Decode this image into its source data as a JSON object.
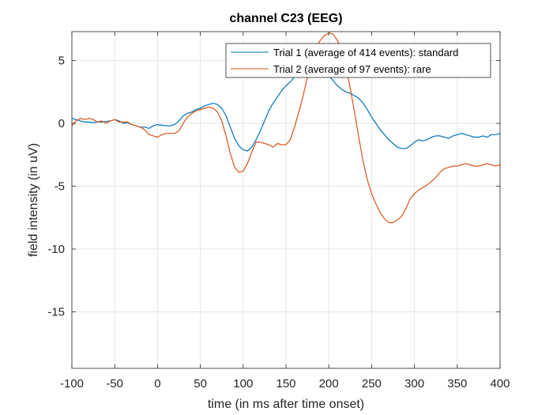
{
  "chart_data": {
    "type": "line",
    "title": "channel C23 (EEG)",
    "xlabel": "time (in ms after time onset)",
    "ylabel": "field intensity (in uV)",
    "xlim": [
      -100,
      400
    ],
    "ylim": [
      -19.5,
      7.3
    ],
    "xticks": [
      -100,
      -50,
      0,
      50,
      100,
      150,
      200,
      250,
      300,
      350,
      400
    ],
    "yticks": [
      5,
      0,
      -5,
      -10,
      -15
    ],
    "grid": true,
    "legend_position": "top-right",
    "series": [
      {
        "name": "Trial 1 (average of 414 events): standard",
        "color": "#0072BD",
        "x": [
          -100,
          -95,
          -90,
          -85,
          -80,
          -75,
          -70,
          -65,
          -60,
          -55,
          -50,
          -45,
          -40,
          -35,
          -30,
          -25,
          -20,
          -15,
          -10,
          -5,
          0,
          5,
          10,
          15,
          20,
          25,
          30,
          35,
          40,
          45,
          50,
          55,
          60,
          65,
          70,
          75,
          80,
          85,
          90,
          95,
          100,
          105,
          110,
          115,
          120,
          125,
          130,
          135,
          140,
          145,
          150,
          155,
          160,
          165,
          170,
          175,
          180,
          185,
          190,
          195,
          200,
          205,
          210,
          215,
          220,
          225,
          230,
          235,
          240,
          245,
          250,
          255,
          260,
          265,
          270,
          275,
          280,
          285,
          290,
          295,
          300,
          305,
          310,
          315,
          320,
          325,
          330,
          335,
          340,
          345,
          350,
          355,
          360,
          365,
          370,
          375,
          380,
          385,
          390,
          395,
          400
        ],
        "values": [
          0.4,
          0.3,
          0.2,
          0.1,
          0.1,
          0.05,
          0.1,
          0.1,
          0.15,
          0.2,
          0.3,
          0.2,
          0.0,
          0.05,
          -0.1,
          -0.2,
          -0.3,
          -0.3,
          -0.4,
          -0.2,
          -0.1,
          -0.15,
          -0.2,
          -0.2,
          -0.1,
          0.2,
          0.6,
          0.8,
          0.9,
          1.1,
          1.2,
          1.4,
          1.5,
          1.6,
          1.5,
          1.2,
          0.6,
          -0.3,
          -1.2,
          -1.8,
          -2.1,
          -2.2,
          -1.9,
          -1.3,
          -0.6,
          0.2,
          1.0,
          1.6,
          2.1,
          2.6,
          3.0,
          3.3,
          3.7,
          4.0,
          4.2,
          4.5,
          4.6,
          4.6,
          4.5,
          4.2,
          3.8,
          3.4,
          3.0,
          2.7,
          2.5,
          2.4,
          2.2,
          2.0,
          1.6,
          1.1,
          0.5,
          0.0,
          -0.5,
          -0.9,
          -1.3,
          -1.6,
          -1.9,
          -2.0,
          -2.0,
          -1.8,
          -1.5,
          -1.3,
          -1.4,
          -1.3,
          -1.1,
          -1.0,
          -1.0,
          -1.1,
          -1.2,
          -1.0,
          -0.9,
          -0.8,
          -0.9,
          -1.0,
          -1.1,
          -1.1,
          -1.0,
          -1.1,
          -0.9,
          -0.9,
          -0.8
        ]
      },
      {
        "name": "Trial 2 (average of 97 events): rare",
        "color": "#D95319",
        "x": [
          -100,
          -95,
          -90,
          -85,
          -80,
          -75,
          -70,
          -65,
          -60,
          -55,
          -50,
          -45,
          -40,
          -35,
          -30,
          -25,
          -20,
          -15,
          -10,
          -5,
          0,
          5,
          10,
          15,
          20,
          25,
          30,
          35,
          40,
          45,
          50,
          55,
          60,
          65,
          70,
          75,
          80,
          85,
          90,
          95,
          100,
          105,
          110,
          115,
          120,
          125,
          130,
          135,
          140,
          145,
          150,
          155,
          160,
          165,
          170,
          175,
          180,
          185,
          190,
          195,
          200,
          205,
          210,
          215,
          220,
          225,
          230,
          235,
          240,
          245,
          250,
          255,
          260,
          265,
          270,
          275,
          280,
          285,
          290,
          295,
          300,
          305,
          310,
          315,
          320,
          325,
          330,
          335,
          340,
          345,
          350,
          355,
          360,
          365,
          370,
          375,
          380,
          385,
          390,
          395,
          400
        ],
        "values": [
          -0.2,
          0.2,
          0.4,
          0.3,
          0.4,
          0.3,
          0.1,
          0.2,
          0.0,
          0.2,
          0.3,
          0.1,
          0.1,
          0.1,
          -0.1,
          -0.2,
          -0.3,
          -0.5,
          -0.9,
          -1.0,
          -1.1,
          -0.9,
          -0.8,
          -0.8,
          -0.8,
          -0.6,
          0.0,
          0.5,
          0.8,
          1.0,
          1.1,
          1.2,
          1.3,
          1.2,
          0.9,
          0.2,
          -1.0,
          -2.4,
          -3.5,
          -3.9,
          -3.8,
          -3.2,
          -2.3,
          -1.5,
          -1.5,
          -1.6,
          -1.7,
          -1.9,
          -1.6,
          -1.7,
          -1.7,
          -1.3,
          -0.3,
          0.9,
          2.2,
          3.7,
          5.0,
          6.0,
          6.6,
          7.0,
          7.2,
          7.1,
          6.6,
          5.8,
          4.5,
          2.8,
          0.9,
          -1.1,
          -3.0,
          -4.5,
          -5.6,
          -6.4,
          -7.1,
          -7.6,
          -7.9,
          -7.9,
          -7.7,
          -7.4,
          -6.8,
          -6.0,
          -5.6,
          -5.3,
          -5.1,
          -4.9,
          -4.6,
          -4.3,
          -3.9,
          -3.6,
          -3.5,
          -3.4,
          -3.4,
          -3.3,
          -3.2,
          -3.3,
          -3.4,
          -3.4,
          -3.3,
          -3.2,
          -3.3,
          -3.4,
          -3.3
        ]
      }
    ]
  }
}
